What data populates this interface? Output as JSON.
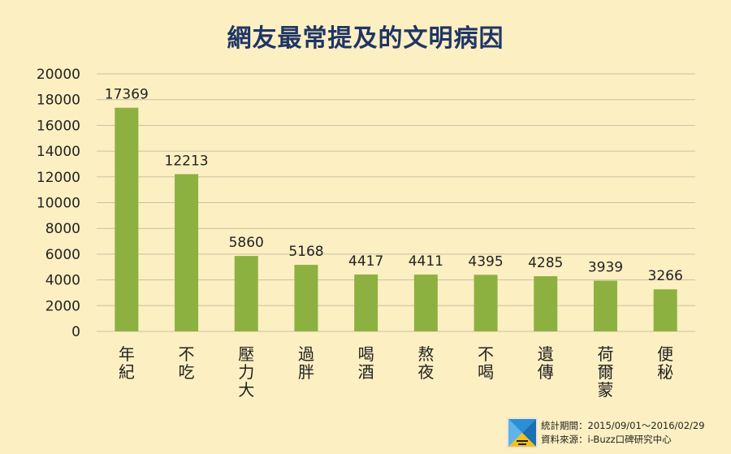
{
  "chart_data": {
    "type": "bar",
    "title": "網友最常提及的文明病因",
    "categories": [
      "年紀",
      "不吃",
      "壓力大",
      "過胖",
      "喝酒",
      "熬夜",
      "不喝",
      "遺傳",
      "荷爾蒙",
      "便秘"
    ],
    "values": [
      17369,
      12213,
      5860,
      5168,
      4417,
      4411,
      4395,
      4285,
      3939,
      3266
    ],
    "ylim": [
      0,
      20000
    ],
    "yticks": [
      0,
      2000,
      4000,
      6000,
      8000,
      10000,
      12000,
      14000,
      16000,
      18000,
      20000
    ],
    "grid": true,
    "legend": "none",
    "bar_color": "#8db140",
    "grid_color": "#c9c2a2",
    "text_color": "#222222",
    "title_color": "#1f3566"
  },
  "footer": {
    "period": "統計期間：2015/09/01～2016/02/29",
    "source": "資料來源：i-Buzz口碑研究中心",
    "logo_icon": "i-buzz-logo-icon"
  }
}
